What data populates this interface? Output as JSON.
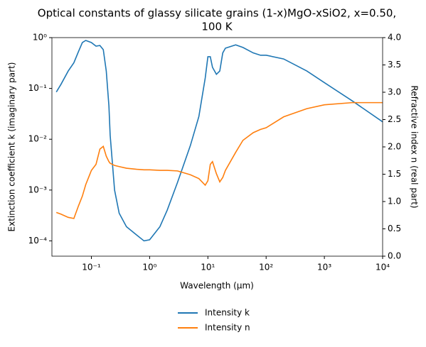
{
  "chart_data": {
    "type": "line",
    "title": [
      "Optical constants of glassy silicate grains (1-x)MgO-xSiO2, x=0.50,",
      "100 K"
    ],
    "xlabel": "Wavelength (μm)",
    "ylabel": "Extinction coefficient k (imaginary part)",
    "y2label": "Refractive index n (real part)",
    "xscale": "log",
    "yscale": "log",
    "legend": "below",
    "x": [
      0.025,
      0.03,
      0.04,
      0.05,
      0.06,
      0.07,
      0.08,
      0.1,
      0.12,
      0.14,
      0.16,
      0.18,
      0.2,
      0.21,
      0.25,
      0.3,
      0.4,
      0.6,
      0.8,
      1,
      1.5,
      2,
      3,
      5,
      7,
      9,
      10,
      11,
      12,
      14,
      16,
      18,
      20,
      30,
      40,
      60,
      80,
      100,
      200,
      500,
      1000,
      3000,
      10000
    ],
    "series": [
      {
        "name": "Intensity k",
        "color": "#1f77b4",
        "values": [
          0.085,
          0.12,
          0.22,
          0.32,
          0.53,
          0.8,
          0.88,
          0.8,
          0.68,
          0.7,
          0.58,
          0.22,
          0.045,
          0.012,
          0.001,
          0.00035,
          0.00019,
          0.00013,
          0.0001,
          0.000105,
          0.00019,
          0.0004,
          0.0014,
          0.0075,
          0.028,
          0.16,
          0.42,
          0.42,
          0.26,
          0.19,
          0.22,
          0.5,
          0.62,
          0.72,
          0.64,
          0.5,
          0.45,
          0.45,
          0.38,
          0.22,
          0.13,
          0.057,
          0.022
        ]
      },
      {
        "name": "Intensity n",
        "color": "#ff7f0e",
        "axis": "y2",
        "values": [
          0.8,
          0.77,
          0.71,
          0.69,
          0.92,
          1.1,
          1.31,
          1.57,
          1.68,
          1.96,
          2.01,
          1.83,
          1.73,
          1.7,
          1.66,
          1.64,
          1.61,
          1.59,
          1.58,
          1.58,
          1.57,
          1.57,
          1.56,
          1.49,
          1.42,
          1.3,
          1.38,
          1.68,
          1.73,
          1.51,
          1.36,
          1.44,
          1.57,
          1.9,
          2.12,
          2.26,
          2.32,
          2.35,
          2.55,
          2.7,
          2.77,
          2.81,
          2.81
        ]
      }
    ],
    "xlim": [
      0.021,
      10000
    ],
    "xticks": [
      {
        "value": 0.1,
        "label": "10⁻¹"
      },
      {
        "value": 1,
        "label": "10⁰"
      },
      {
        "value": 10,
        "label": "10¹"
      },
      {
        "value": 100,
        "label": "10²"
      },
      {
        "value": 1000,
        "label": "10³"
      },
      {
        "value": 10000,
        "label": "10⁴"
      }
    ],
    "ylim": [
      5e-05,
      1
    ],
    "yticks": [
      {
        "value": 0.0001,
        "label": "10⁻⁴"
      },
      {
        "value": 0.001,
        "label": "10⁻³"
      },
      {
        "value": 0.01,
        "label": "10⁻²"
      },
      {
        "value": 0.1,
        "label": "10⁻¹"
      },
      {
        "value": 1,
        "label": "10⁰"
      }
    ],
    "y2lim": [
      0,
      4
    ],
    "y2ticks": [
      {
        "value": 0,
        "label": "0.0"
      },
      0.5,
      {
        "value": 1,
        "label": "1.0"
      },
      1.5,
      {
        "value": 2,
        "label": "2.0"
      },
      2.5,
      {
        "value": 3,
        "label": "3.0"
      },
      3.5,
      {
        "value": 4,
        "label": "4.0"
      }
    ]
  }
}
